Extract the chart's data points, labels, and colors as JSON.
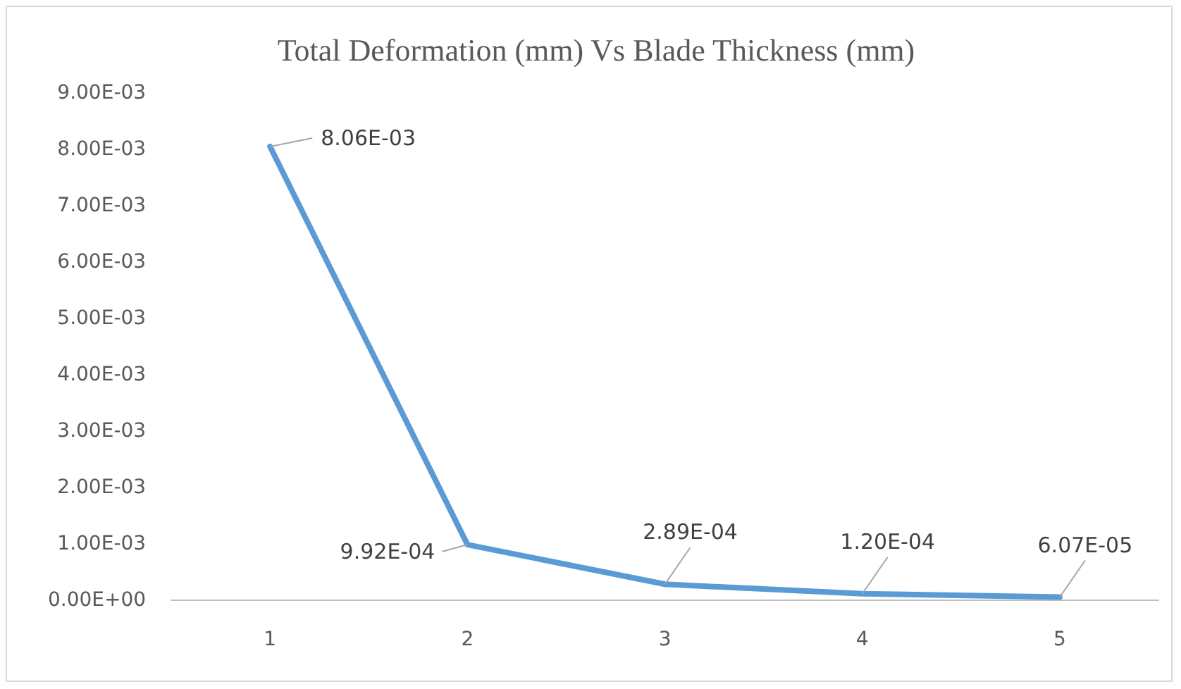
{
  "chart_data": {
    "type": "line",
    "title": "Total Deformation (mm) Vs Blade Thickness (mm)",
    "categories": [
      "1",
      "2",
      "3",
      "4",
      "5"
    ],
    "series": [
      {
        "color": "#5b9bd5",
        "values": [
          0.00806,
          0.000992,
          0.000289,
          0.00012,
          6.07e-05
        ],
        "value_labels": [
          "8.06E-03",
          "9.92E-04",
          "2.89E-04",
          "1.20E-04",
          "6.07E-05"
        ]
      }
    ],
    "ylim": [
      0,
      0.009
    ],
    "yticks": [
      {
        "value": 0,
        "label": "0.00E+00"
      },
      {
        "value": 0.001,
        "label": "1.00E-03"
      },
      {
        "value": 0.002,
        "label": "2.00E-03"
      },
      {
        "value": 0.003,
        "label": "3.00E-03"
      },
      {
        "value": 0.004,
        "label": "4.00E-03"
      },
      {
        "value": 0.005,
        "label": "5.00E-03"
      },
      {
        "value": 0.006,
        "label": "6.00E-03"
      },
      {
        "value": 0.007,
        "label": "7.00E-03"
      },
      {
        "value": 0.008,
        "label": "8.00E-03"
      },
      {
        "value": 0.009,
        "label": "9.00E-03"
      }
    ],
    "grid": false,
    "legend": false,
    "marker": "none",
    "line_style": "solid"
  }
}
